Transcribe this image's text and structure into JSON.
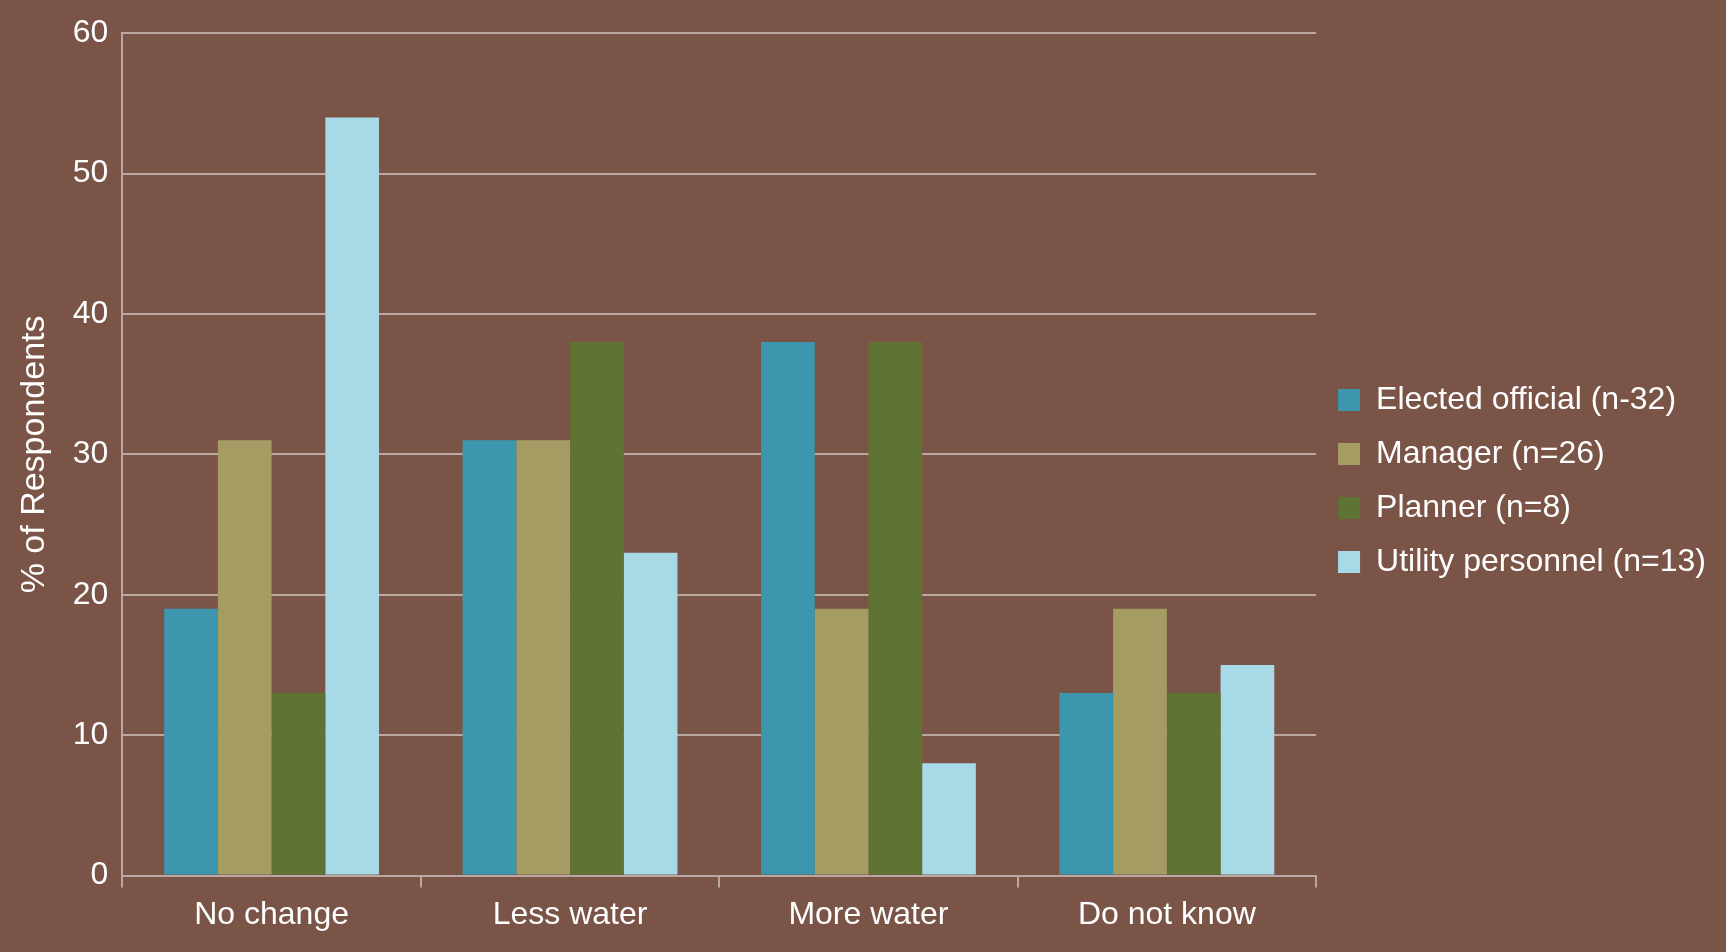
{
  "chart_data": {
    "type": "bar",
    "ylabel": "% of Respondents",
    "categories": [
      "No change",
      "Less water",
      "More water",
      "Do not know"
    ],
    "series": [
      {
        "name": "Elected official (n-32)",
        "color": "#3b96ae",
        "values": [
          19,
          31,
          38,
          13
        ]
      },
      {
        "name": "Manager (n=26)",
        "color": "#a59c64",
        "values": [
          31,
          31,
          19,
          19
        ]
      },
      {
        "name": "Planner (n=8)",
        "color": "#5f7434",
        "values": [
          13,
          38,
          38,
          13
        ]
      },
      {
        "name": "Utility personnel (n=13)",
        "color": "#a7d9e7",
        "values": [
          54,
          23,
          8,
          15
        ]
      }
    ],
    "ylim": [
      0,
      60
    ],
    "yticks": [
      0,
      10,
      20,
      30,
      40,
      50,
      60
    ],
    "grid": "y",
    "legend": "right"
  }
}
